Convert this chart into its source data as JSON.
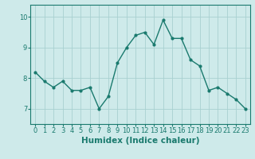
{
  "x": [
    0,
    1,
    2,
    3,
    4,
    5,
    6,
    7,
    8,
    9,
    10,
    11,
    12,
    13,
    14,
    15,
    16,
    17,
    18,
    19,
    20,
    21,
    22,
    23
  ],
  "y": [
    8.2,
    7.9,
    7.7,
    7.9,
    7.6,
    7.6,
    7.7,
    7.0,
    7.4,
    8.5,
    9.0,
    9.4,
    9.5,
    9.1,
    9.9,
    9.3,
    9.3,
    8.6,
    8.4,
    7.6,
    7.7,
    7.5,
    7.3,
    7.0
  ],
  "line_color": "#1a7a6e",
  "marker": "o",
  "marker_size": 2,
  "bg_color": "#ceeaea",
  "grid_color": "#a8d0d0",
  "xlabel": "Humidex (Indice chaleur)",
  "ylim": [
    6.5,
    10.4
  ],
  "xlim": [
    -0.5,
    23.5
  ],
  "yticks": [
    7,
    8,
    9,
    10
  ],
  "xticks": [
    0,
    1,
    2,
    3,
    4,
    5,
    6,
    7,
    8,
    9,
    10,
    11,
    12,
    13,
    14,
    15,
    16,
    17,
    18,
    19,
    20,
    21,
    22,
    23
  ],
  "tick_fontsize": 6,
  "xlabel_fontsize": 7.5,
  "line_width": 1.0
}
